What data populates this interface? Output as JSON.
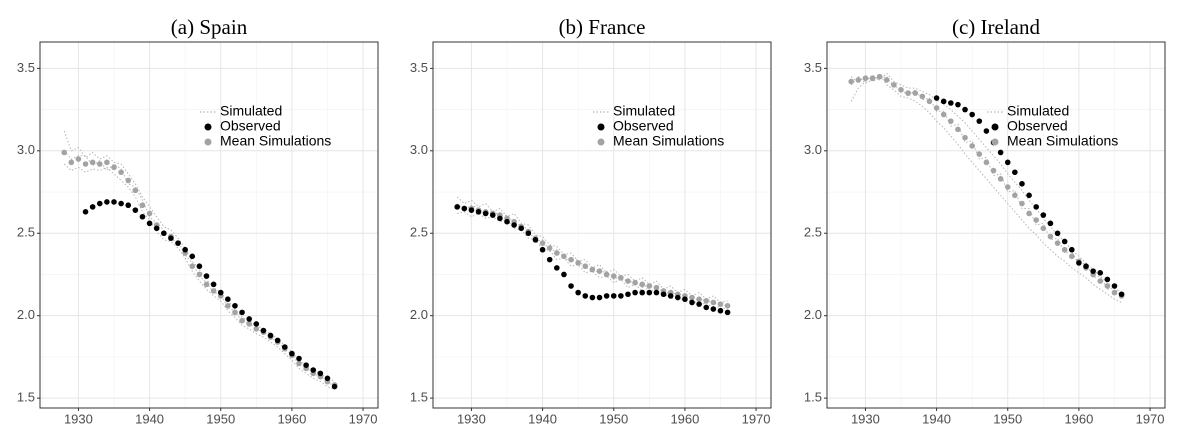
{
  "chart_data": [
    {
      "type": "line",
      "title": "(a) Spain",
      "x": [
        1928,
        1929,
        1930,
        1931,
        1932,
        1933,
        1934,
        1935,
        1936,
        1937,
        1938,
        1939,
        1940,
        1941,
        1942,
        1943,
        1944,
        1945,
        1946,
        1947,
        1948,
        1949,
        1950,
        1951,
        1952,
        1953,
        1954,
        1955,
        1956,
        1957,
        1958,
        1959,
        1960,
        1961,
        1962,
        1963,
        1964,
        1965,
        1966
      ],
      "xlim": [
        1924.6,
        1972.1
      ],
      "xticks": [
        1930,
        1940,
        1950,
        1960,
        1970
      ],
      "ylim": [
        1.44,
        3.66
      ],
      "yticks": [
        1.5,
        {
          "value": 2,
          "label": "2.0"
        },
        2.5,
        {
          "value": 3,
          "label": "3.0"
        },
        3.5
      ],
      "grid": true,
      "legend": "top-right",
      "series": [
        {
          "name": "Simulated",
          "color": "#b5b5b5",
          "style": "dotted",
          "lines": [
            [
              3.12,
              3.0,
              3.02,
              2.96,
              2.99,
              2.95,
              2.97,
              2.93,
              2.92,
              2.86,
              2.8,
              2.72,
              2.66,
              2.6,
              2.54,
              2.52,
              2.47,
              2.41,
              2.33,
              2.28,
              2.22,
              2.17,
              2.14,
              2.09,
              2.04,
              1.99,
              1.97,
              1.94,
              1.92,
              1.89,
              1.86,
              1.82,
              1.78,
              1.73,
              1.7,
              1.67,
              1.65,
              1.62,
              1.6
            ],
            [
              2.92,
              2.88,
              2.9,
              2.87,
              2.89,
              2.88,
              2.9,
              2.86,
              2.82,
              2.78,
              2.72,
              2.63,
              2.58,
              2.51,
              2.46,
              2.45,
              2.41,
              2.35,
              2.27,
              2.21,
              2.16,
              2.12,
              2.09,
              2.03,
              1.99,
              1.94,
              1.92,
              1.89,
              1.87,
              1.84,
              1.81,
              1.77,
              1.73,
              1.68,
              1.65,
              1.62,
              1.6,
              1.57,
              1.55
            ],
            [
              3.0,
              2.95,
              2.97,
              2.97,
              2.91,
              2.94,
              2.88,
              2.92,
              2.89,
              2.8,
              2.78,
              2.7,
              2.6,
              2.56,
              2.52,
              2.46,
              2.45,
              2.37,
              2.32,
              2.24,
              2.2,
              2.14,
              2.13,
              2.05,
              2.03,
              1.96,
              1.96,
              1.91,
              1.91,
              1.86,
              1.85,
              1.79,
              1.77,
              1.7,
              1.69,
              1.64,
              1.64,
              1.59,
              1.58
            ]
          ]
        },
        {
          "name": "Observed",
          "color": "#000000",
          "style": "points",
          "values": [
            null,
            null,
            null,
            2.63,
            2.66,
            2.68,
            2.69,
            2.69,
            2.68,
            2.67,
            2.64,
            2.6,
            2.56,
            2.53,
            2.5,
            2.47,
            2.44,
            2.4,
            2.36,
            2.3,
            2.24,
            2.19,
            2.14,
            2.1,
            2.06,
            2.02,
            1.98,
            1.95,
            1.91,
            1.88,
            1.85,
            1.81,
            1.77,
            1.74,
            1.7,
            1.67,
            1.65,
            1.62,
            1.57
          ]
        },
        {
          "name": "Mean Simulations",
          "color": "#a3a3a3",
          "style": "points",
          "values": [
            2.99,
            2.93,
            2.95,
            2.92,
            2.93,
            2.92,
            2.93,
            2.9,
            2.87,
            2.82,
            2.76,
            2.67,
            2.62,
            2.55,
            2.5,
            2.48,
            2.44,
            2.38,
            2.3,
            2.25,
            2.19,
            2.15,
            2.12,
            2.06,
            2.02,
            1.97,
            1.95,
            1.92,
            1.9,
            1.87,
            1.84,
            1.8,
            1.76,
            1.71,
            1.68,
            1.65,
            1.63,
            1.6,
            1.58
          ]
        }
      ]
    },
    {
      "type": "line",
      "title": "(b) France",
      "x": [
        1928,
        1929,
        1930,
        1931,
        1932,
        1933,
        1934,
        1935,
        1936,
        1937,
        1938,
        1939,
        1940,
        1941,
        1942,
        1943,
        1944,
        1945,
        1946,
        1947,
        1948,
        1949,
        1950,
        1951,
        1952,
        1953,
        1954,
        1955,
        1956,
        1957,
        1958,
        1959,
        1960,
        1961,
        1962,
        1963,
        1964,
        1965,
        1966
      ],
      "xlim": [
        1924.6,
        1972.1
      ],
      "xticks": [
        1930,
        1940,
        1950,
        1960,
        1970
      ],
      "ylim": [
        1.44,
        3.66
      ],
      "yticks": [
        1.5,
        {
          "value": 2,
          "label": "2.0"
        },
        2.5,
        {
          "value": 3,
          "label": "3.0"
        },
        3.5
      ],
      "grid": true,
      "legend": "top-right",
      "series": [
        {
          "name": "Simulated",
          "color": "#b5b5b5",
          "style": "dotted",
          "lines": [
            [
              2.72,
              2.68,
              2.7,
              2.66,
              2.68,
              2.63,
              2.65,
              2.6,
              2.62,
              2.56,
              2.55,
              2.49,
              2.48,
              2.43,
              2.42,
              2.37,
              2.38,
              2.33,
              2.34,
              2.29,
              2.31,
              2.26,
              2.28,
              2.24,
              2.25,
              2.21,
              2.23,
              2.19,
              2.21,
              2.16,
              2.18,
              2.14,
              2.16,
              2.12,
              2.14,
              2.1,
              2.12,
              2.08,
              2.09
            ],
            [
              2.62,
              2.63,
              2.6,
              2.62,
              2.59,
              2.6,
              2.57,
              2.58,
              2.53,
              2.52,
              2.47,
              2.46,
              2.4,
              2.4,
              2.34,
              2.35,
              2.3,
              2.31,
              2.26,
              2.27,
              2.23,
              2.24,
              2.2,
              2.22,
              2.17,
              2.19,
              2.15,
              2.17,
              2.13,
              2.14,
              2.1,
              2.12,
              2.08,
              2.1,
              2.06,
              2.08,
              2.04,
              2.06,
              2.03
            ],
            [
              2.68,
              2.64,
              2.67,
              2.65,
              2.61,
              2.64,
              2.6,
              2.61,
              2.56,
              2.55,
              2.52,
              2.45,
              2.46,
              2.39,
              2.4,
              2.35,
              2.33,
              2.34,
              2.29,
              2.28,
              2.26,
              2.27,
              2.22,
              2.24,
              2.2,
              2.21,
              2.17,
              2.19,
              2.16,
              2.15,
              2.13,
              2.14,
              2.11,
              2.11,
              2.09,
              2.1,
              2.07,
              2.08,
              2.05
            ]
          ]
        },
        {
          "name": "Observed",
          "color": "#000000",
          "style": "points",
          "values": [
            2.66,
            2.65,
            2.64,
            2.63,
            2.62,
            2.61,
            2.59,
            2.57,
            2.55,
            2.53,
            2.5,
            2.46,
            2.4,
            2.34,
            2.29,
            2.25,
            2.18,
            2.14,
            2.12,
            2.11,
            2.11,
            2.12,
            2.12,
            2.12,
            2.13,
            2.14,
            2.14,
            2.14,
            2.14,
            2.13,
            2.12,
            2.11,
            2.1,
            2.08,
            2.07,
            2.05,
            2.04,
            2.03,
            2.02
          ]
        },
        {
          "name": "Mean Simulations",
          "color": "#a3a3a3",
          "style": "points",
          "values": [
            2.66,
            2.65,
            2.65,
            2.64,
            2.63,
            2.62,
            2.61,
            2.59,
            2.57,
            2.54,
            2.51,
            2.47,
            2.44,
            2.41,
            2.38,
            2.36,
            2.34,
            2.32,
            2.3,
            2.28,
            2.27,
            2.25,
            2.24,
            2.23,
            2.21,
            2.2,
            2.19,
            2.18,
            2.17,
            2.15,
            2.14,
            2.13,
            2.12,
            2.11,
            2.1,
            2.09,
            2.08,
            2.07,
            2.06
          ]
        }
      ]
    },
    {
      "type": "line",
      "title": "(c) Ireland",
      "x": [
        1928,
        1929,
        1930,
        1931,
        1932,
        1933,
        1934,
        1935,
        1936,
        1937,
        1938,
        1939,
        1940,
        1941,
        1942,
        1943,
        1944,
        1945,
        1946,
        1947,
        1948,
        1949,
        1950,
        1951,
        1952,
        1953,
        1954,
        1955,
        1956,
        1957,
        1958,
        1959,
        1960,
        1961,
        1962,
        1963,
        1964,
        1965,
        1966
      ],
      "xlim": [
        1924.6,
        1972.1
      ],
      "xticks": [
        1930,
        1940,
        1950,
        1960,
        1970
      ],
      "ylim": [
        1.44,
        3.66
      ],
      "yticks": [
        1.5,
        {
          "value": 2,
          "label": "2.0"
        },
        2.5,
        {
          "value": 3,
          "label": "3.0"
        },
        3.5
      ],
      "grid": true,
      "legend": "top-right",
      "series": [
        {
          "name": "Simulated",
          "color": "#b5b5b5",
          "style": "dotted",
          "lines": [
            [
              3.3,
              3.38,
              3.42,
              3.46,
              3.43,
              3.47,
              3.42,
              3.4,
              3.38,
              3.38,
              3.36,
              3.34,
              3.31,
              3.28,
              3.25,
              3.21,
              3.17,
              3.12,
              3.07,
              3.02,
              2.97,
              2.92,
              2.86,
              2.81,
              2.76,
              2.7,
              2.65,
              2.59,
              2.54,
              2.49,
              2.45,
              2.4,
              2.36,
              2.32,
              2.28,
              2.24,
              2.2,
              2.17,
              2.14
            ],
            [
              3.4,
              3.45,
              3.41,
              3.43,
              3.46,
              3.4,
              3.37,
              3.33,
              3.32,
              3.3,
              3.27,
              3.23,
              3.18,
              3.14,
              3.09,
              3.04,
              2.98,
              2.93,
              2.88,
              2.83,
              2.78,
              2.73,
              2.68,
              2.63,
              2.58,
              2.53,
              2.49,
              2.44,
              2.4,
              2.36,
              2.33,
              2.29,
              2.26,
              2.23,
              2.19,
              2.16,
              2.13,
              2.1,
              2.08
            ],
            [
              3.45,
              3.41,
              3.46,
              3.42,
              3.44,
              3.45,
              3.39,
              3.38,
              3.33,
              3.37,
              3.31,
              3.32,
              3.24,
              3.24,
              3.15,
              3.16,
              3.05,
              3.06,
              2.95,
              2.96,
              2.85,
              2.86,
              2.75,
              2.76,
              2.65,
              2.65,
              2.55,
              2.56,
              2.46,
              2.47,
              2.38,
              2.39,
              2.31,
              2.32,
              2.23,
              2.24,
              2.16,
              2.17,
              2.11
            ]
          ]
        },
        {
          "name": "Observed",
          "color": "#000000",
          "style": "points",
          "values": [
            null,
            null,
            null,
            null,
            null,
            null,
            null,
            null,
            null,
            null,
            null,
            null,
            3.32,
            3.3,
            3.29,
            3.28,
            3.25,
            3.22,
            3.18,
            3.12,
            3.05,
            2.99,
            2.93,
            2.87,
            2.8,
            2.73,
            2.66,
            2.61,
            2.56,
            2.5,
            2.45,
            2.4,
            2.32,
            2.3,
            2.27,
            2.26,
            2.22,
            2.18,
            2.13
          ]
        },
        {
          "name": "Mean Simulations",
          "color": "#a3a3a3",
          "style": "points",
          "values": [
            3.42,
            3.43,
            3.44,
            3.44,
            3.45,
            3.43,
            3.4,
            3.37,
            3.35,
            3.35,
            3.33,
            3.3,
            3.26,
            3.22,
            3.18,
            3.13,
            3.08,
            3.03,
            2.98,
            2.93,
            2.88,
            2.83,
            2.78,
            2.73,
            2.68,
            2.62,
            2.58,
            2.53,
            2.48,
            2.44,
            2.4,
            2.36,
            2.33,
            2.29,
            2.25,
            2.21,
            2.18,
            2.14,
            2.12
          ]
        }
      ]
    }
  ]
}
